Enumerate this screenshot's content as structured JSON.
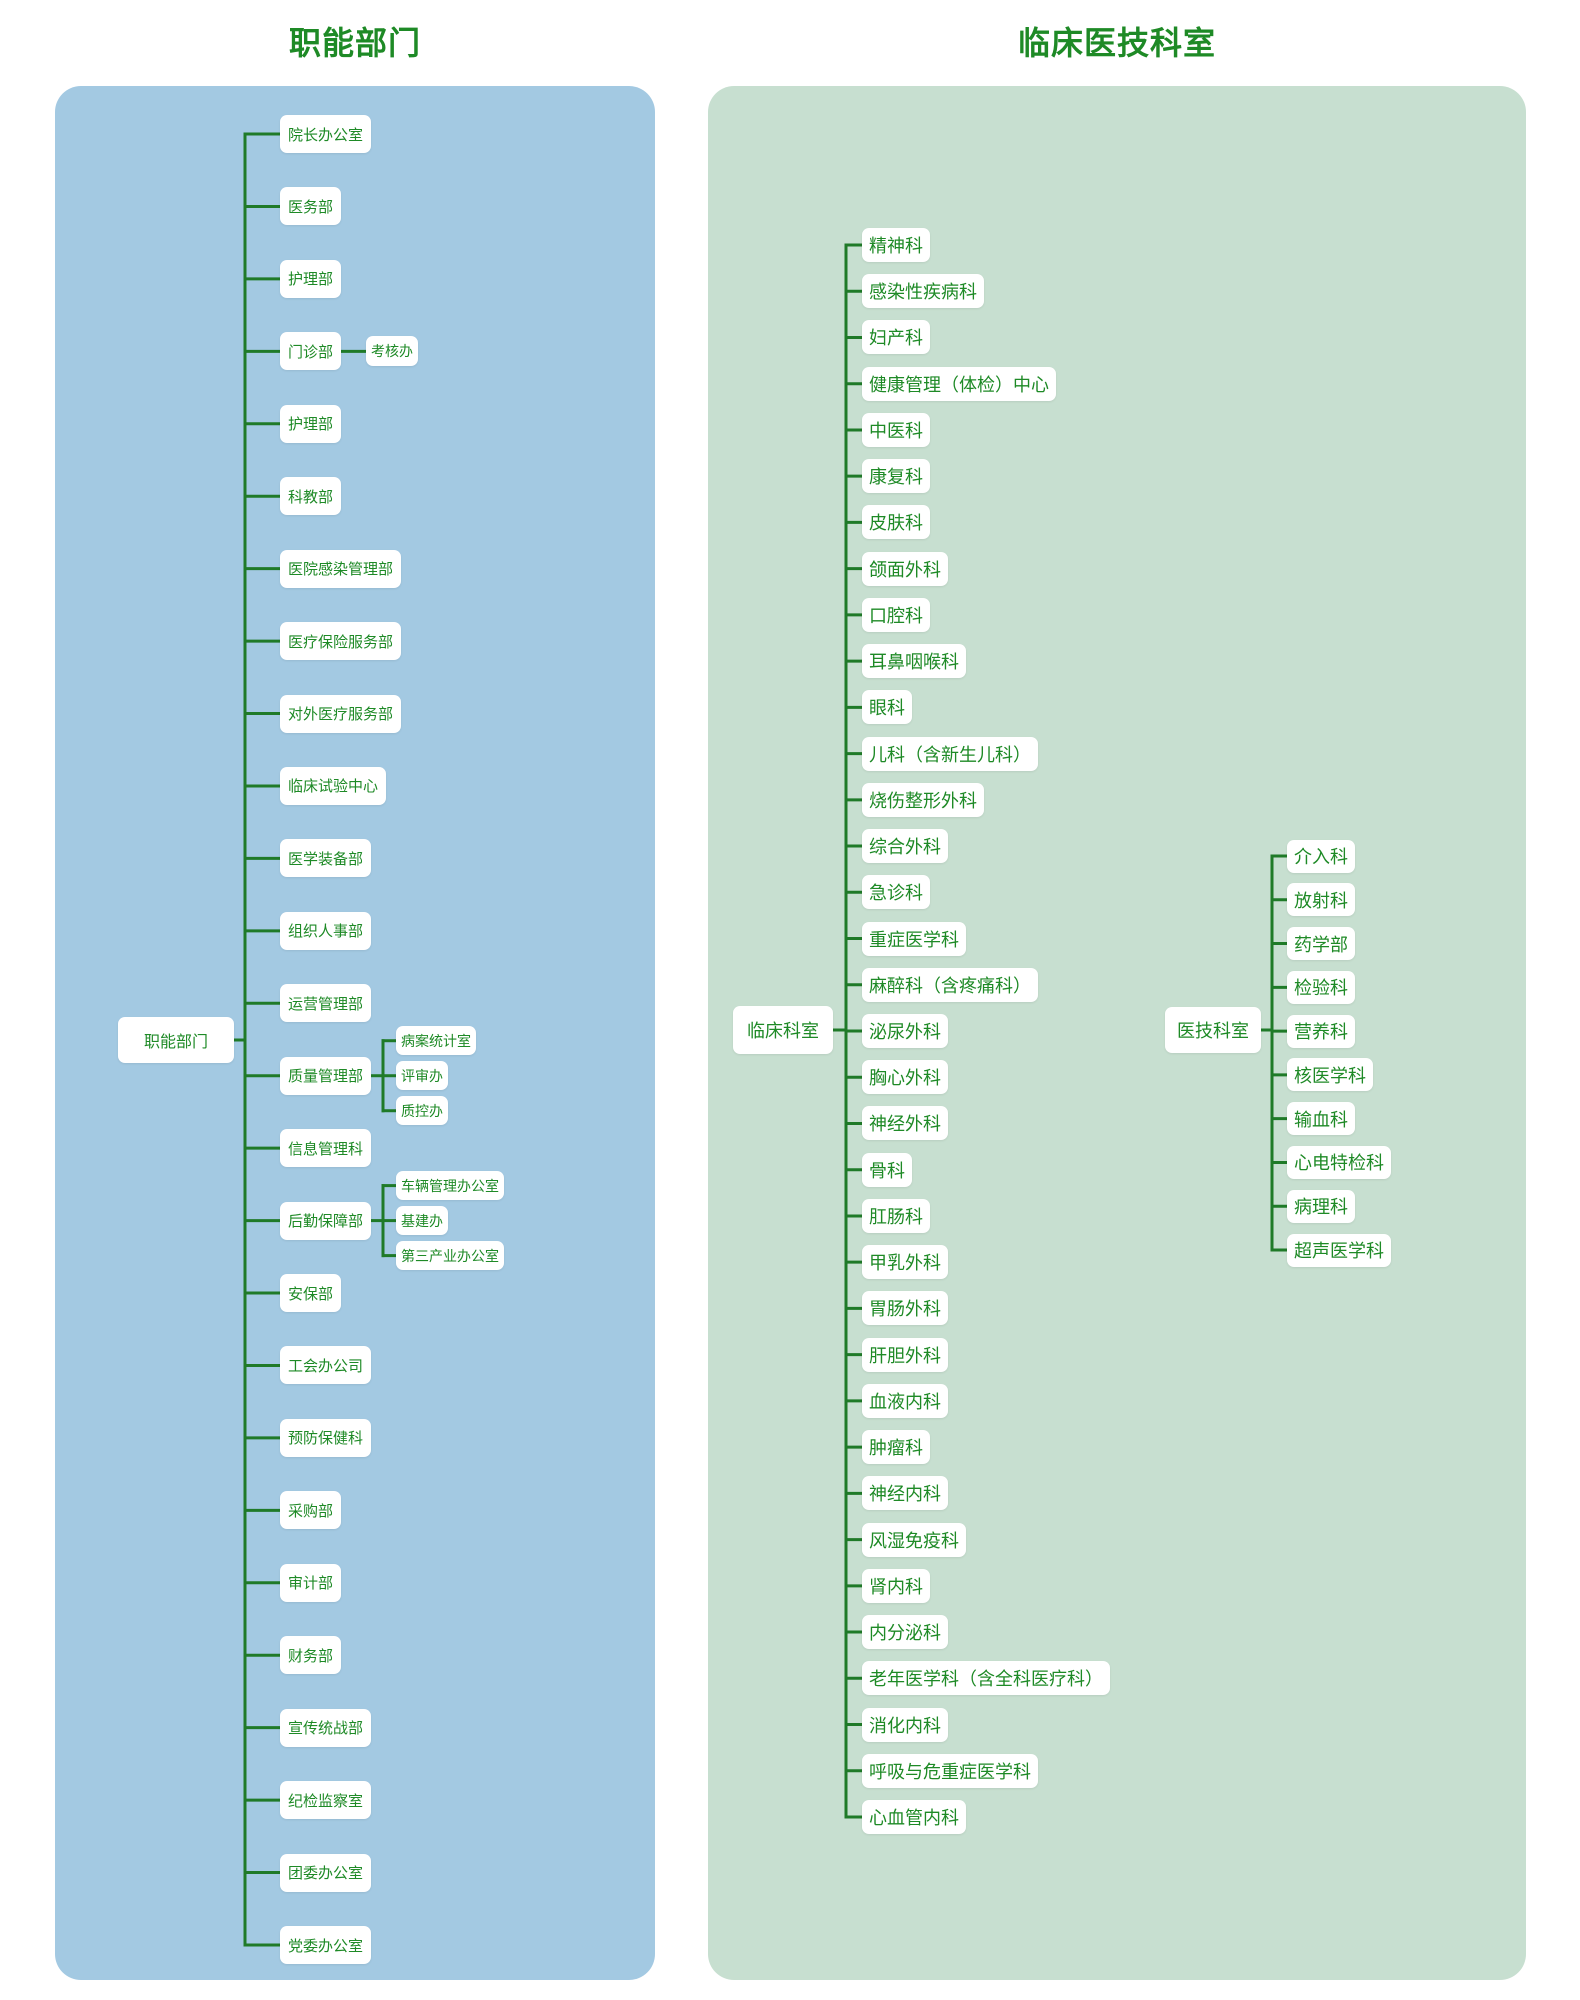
{
  "colors": {
    "accent": "#1e8a26",
    "line": "#1f7a28",
    "panel_left": "#a3c9e2",
    "panel_right": "#c7dfd0",
    "node_bg": "#ffffff"
  },
  "functional": {
    "title": "职能部门",
    "root": "职能部门",
    "items": [
      {
        "label": "院长办公室"
      },
      {
        "label": "医务部"
      },
      {
        "label": "护理部"
      },
      {
        "label": "门诊部",
        "children": [
          "考核办"
        ]
      },
      {
        "label": "护理部"
      },
      {
        "label": "科教部"
      },
      {
        "label": "医院感染管理部"
      },
      {
        "label": "医疗保险服务部"
      },
      {
        "label": "对外医疗服务部"
      },
      {
        "label": "临床试验中心"
      },
      {
        "label": "医学装备部"
      },
      {
        "label": "组织人事部"
      },
      {
        "label": "运营管理部"
      },
      {
        "label": "质量管理部",
        "children": [
          "病案统计室",
          "评审办",
          "质控办"
        ]
      },
      {
        "label": "信息管理科"
      },
      {
        "label": "后勤保障部",
        "children": [
          "车辆管理办公室",
          "基建办",
          "第三产业办公室"
        ]
      },
      {
        "label": "安保部"
      },
      {
        "label": "工会办公司"
      },
      {
        "label": "预防保健科"
      },
      {
        "label": "采购部"
      },
      {
        "label": "审计部"
      },
      {
        "label": "财务部"
      },
      {
        "label": "宣传统战部"
      },
      {
        "label": "纪检监察室"
      },
      {
        "label": "团委办公室"
      },
      {
        "label": "党委办公室"
      }
    ]
  },
  "clinical": {
    "title": "临床医技科室",
    "root": "临床科室",
    "items": [
      "精神科",
      "感染性疾病科",
      "妇产科",
      "健康管理（体检）中心",
      "中医科",
      "康复科",
      "皮肤科",
      "颌面外科",
      "口腔科",
      "耳鼻咽喉科",
      "眼科",
      "儿科（含新生儿科）",
      "烧伤整形外科",
      "综合外科",
      "急诊科",
      "重症医学科",
      "麻醉科（含疼痛科）",
      "泌尿外科",
      "胸心外科",
      "神经外科",
      "骨科",
      "肛肠科",
      "甲乳外科",
      "胃肠外科",
      "肝胆外科",
      "血液内科",
      "肿瘤科",
      "神经内科",
      "风湿免疫科",
      "肾内科",
      "内分泌科",
      "老年医学科（含全科医疗科）",
      "消化内科",
      "呼吸与危重症医学科",
      "心血管内科"
    ]
  },
  "tech": {
    "root": "医技科室",
    "items": [
      "介入科",
      "放射科",
      "药学部",
      "检验科",
      "营养科",
      "核医学科",
      "输血科",
      "心电特检科",
      "病理科",
      "超声医学科"
    ]
  }
}
